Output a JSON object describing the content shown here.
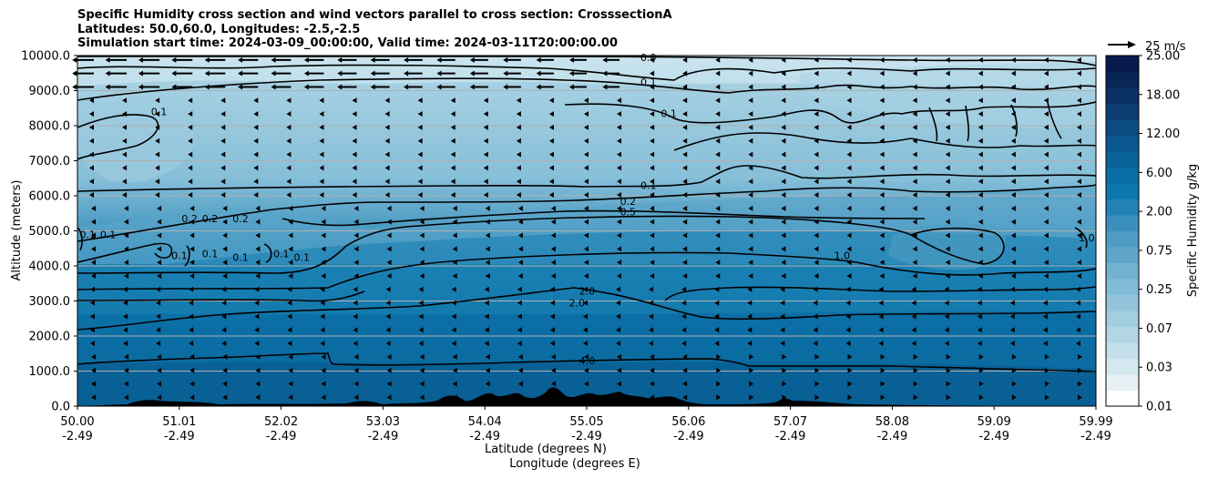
{
  "chart_data": {
    "type": "heatmap",
    "title_lines": [
      "Specific Humidity cross section and wind vectors parallel to cross section: CrosssectionA",
      "Latitudes: 50.0,60.0, Longitudes: -2.5,-2.5",
      "Simulation start time: 2024-03-09_00:00:00, Valid time: 2024-03-11T20:00:00.00"
    ],
    "ylabel": "Altitude (meters)",
    "xlabel_lat": "Latitude (degrees N)",
    "xlabel_lon": "Longitude (degrees E)",
    "ylim": [
      0,
      10000
    ],
    "xlim": [
      50.0,
      59.99
    ],
    "y_ticks": [
      0,
      1000,
      2000,
      3000,
      4000,
      5000,
      6000,
      7000,
      8000,
      9000,
      10000
    ],
    "y_tick_labels": [
      "0.0",
      "1000.0",
      "2000.0",
      "3000.0",
      "4000.0",
      "5000.0",
      "6000.0",
      "7000.0",
      "8000.0",
      "9000.0",
      "10000.0"
    ],
    "x_ticks": [
      {
        "lat": "50.00",
        "lon": "-2.49"
      },
      {
        "lat": "51.01",
        "lon": "-2.49"
      },
      {
        "lat": "52.02",
        "lon": "-2.49"
      },
      {
        "lat": "53.03",
        "lon": "-2.49"
      },
      {
        "lat": "54.04",
        "lon": "-2.49"
      },
      {
        "lat": "55.05",
        "lon": "-2.49"
      },
      {
        "lat": "56.06",
        "lon": "-2.49"
      },
      {
        "lat": "57.07",
        "lon": "-2.49"
      },
      {
        "lat": "58.08",
        "lon": "-2.49"
      },
      {
        "lat": "59.09",
        "lon": "-2.49"
      },
      {
        "lat": "59.99",
        "lon": "-2.49"
      }
    ],
    "colorbar": {
      "label": "Specific Humidity g/kg",
      "tick_labels": [
        "0.01",
        "0.03",
        "0.07",
        "0.25",
        "0.75",
        "2.00",
        "6.00",
        "12.00",
        "18.00",
        "25.00"
      ],
      "colors": [
        "#ffffff",
        "#e8f1f5",
        "#d4e8ef",
        "#c3dfea",
        "#b3d6e4",
        "#a3cde0",
        "#92c4dc",
        "#82bbd7",
        "#72b1d1",
        "#5fa5ca",
        "#4f9bc4",
        "#3a8fbd",
        "#2383b5",
        "#0c79ad",
        "#0a6ea4",
        "#0a6399",
        "#09578e",
        "#0b4b80",
        "#0c3e73",
        "#0b3064",
        "#082557",
        "#061a4d"
      ]
    },
    "wind_key": {
      "label": "25 m/s",
      "value": 25
    },
    "contour_labels": [
      {
        "text": "0.0",
        "lat": 55.6,
        "alt": 9950
      },
      {
        "text": "0.1",
        "lat": 55.6,
        "alt": 9250
      },
      {
        "text": "0.1",
        "lat": 50.8,
        "alt": 8400
      },
      {
        "text": "0.1",
        "lat": 55.8,
        "alt": 8350
      },
      {
        "text": "0.1",
        "lat": 55.6,
        "alt": 6300
      },
      {
        "text": "0.2",
        "lat": 55.4,
        "alt": 5850
      },
      {
        "text": "0.5",
        "lat": 55.4,
        "alt": 5550
      },
      {
        "text": "0.1",
        "lat": 50.1,
        "alt": 4900
      },
      {
        "text": "0.1",
        "lat": 50.3,
        "alt": 4900
      },
      {
        "text": "0.2",
        "lat": 51.1,
        "alt": 5350
      },
      {
        "text": "0.2",
        "lat": 51.3,
        "alt": 5350
      },
      {
        "text": "0.2",
        "lat": 51.6,
        "alt": 5350
      },
      {
        "text": "0.1",
        "lat": 51.0,
        "alt": 4300
      },
      {
        "text": "0.1",
        "lat": 51.3,
        "alt": 4350
      },
      {
        "text": "0.1",
        "lat": 51.6,
        "alt": 4250
      },
      {
        "text": "0.1",
        "lat": 52.0,
        "alt": 4350
      },
      {
        "text": "0.1",
        "lat": 52.2,
        "alt": 4250
      },
      {
        "text": "1.0",
        "lat": 57.5,
        "alt": 4300
      },
      {
        "text": "1.0",
        "lat": 59.9,
        "alt": 4800
      },
      {
        "text": "2.0",
        "lat": 55.0,
        "alt": 3280
      },
      {
        "text": "2.0",
        "lat": 54.9,
        "alt": 2950
      },
      {
        "text": "4.0",
        "lat": 55.0,
        "alt": 1300
      }
    ]
  }
}
